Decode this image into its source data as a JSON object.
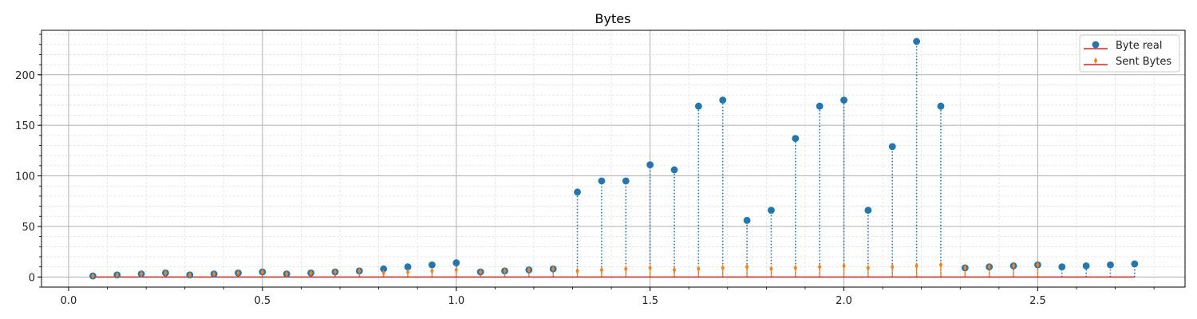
{
  "chart_data": {
    "type": "stem",
    "title": "Bytes",
    "xlabel": "",
    "ylabel": "",
    "xlim": [
      -0.07,
      2.88
    ],
    "ylim": [
      -10,
      244
    ],
    "x_ticks": [
      0.0,
      0.5,
      1.0,
      1.5,
      2.0,
      2.5
    ],
    "x_tick_labels": [
      "0.0",
      "0.5",
      "1.0",
      "1.5",
      "2.0",
      "2.5"
    ],
    "y_ticks": [
      0,
      50,
      100,
      150,
      200
    ],
    "y_tick_labels": [
      "0",
      "50",
      "100",
      "150",
      "200"
    ],
    "grid": true,
    "minor_grid": true,
    "legend_position": "top-right",
    "baseline": {
      "from": 0.0625,
      "to": 2.75,
      "value": 0,
      "color": "#d62728"
    },
    "x": [
      0.0625,
      0.125,
      0.1875,
      0.25,
      0.3125,
      0.375,
      0.4375,
      0.5,
      0.5625,
      0.625,
      0.6875,
      0.75,
      0.8125,
      0.875,
      0.9375,
      1.0,
      1.0625,
      1.125,
      1.1875,
      1.25,
      1.3125,
      1.375,
      1.4375,
      1.5,
      1.5625,
      1.625,
      1.6875,
      1.75,
      1.8125,
      1.875,
      1.9375,
      2.0,
      2.0625,
      2.125,
      2.1875,
      2.25,
      2.3125,
      2.375,
      2.4375,
      2.5,
      2.5625,
      2.625,
      2.6875,
      2.75
    ],
    "series": [
      {
        "name": "Byte real",
        "color": "#1f77b4",
        "marker": "circle",
        "line_style": "dotted",
        "values": [
          1,
          2,
          3,
          4,
          2,
          3,
          4,
          5,
          3,
          4,
          5,
          6,
          8,
          10,
          12,
          14,
          5,
          6,
          7,
          8,
          84,
          95,
          95,
          111,
          106,
          169,
          175,
          56,
          66,
          137,
          169,
          175,
          66,
          129,
          233,
          169,
          9,
          10,
          11,
          12,
          10,
          11,
          12,
          13
        ]
      },
      {
        "name": "Sent Bytes",
        "color": "#ff7f0e",
        "marker": "thin_diamond",
        "line_style": "solid",
        "values": [
          1,
          2,
          3,
          4,
          2,
          3,
          4,
          5,
          3,
          4,
          5,
          6,
          4,
          5,
          6,
          7,
          5,
          6,
          7,
          8,
          6,
          7,
          8,
          9,
          7,
          8,
          9,
          10,
          8,
          9,
          10,
          11,
          9,
          10,
          11,
          12,
          9,
          10,
          11,
          12,
          0,
          0,
          0,
          0
        ]
      }
    ]
  }
}
